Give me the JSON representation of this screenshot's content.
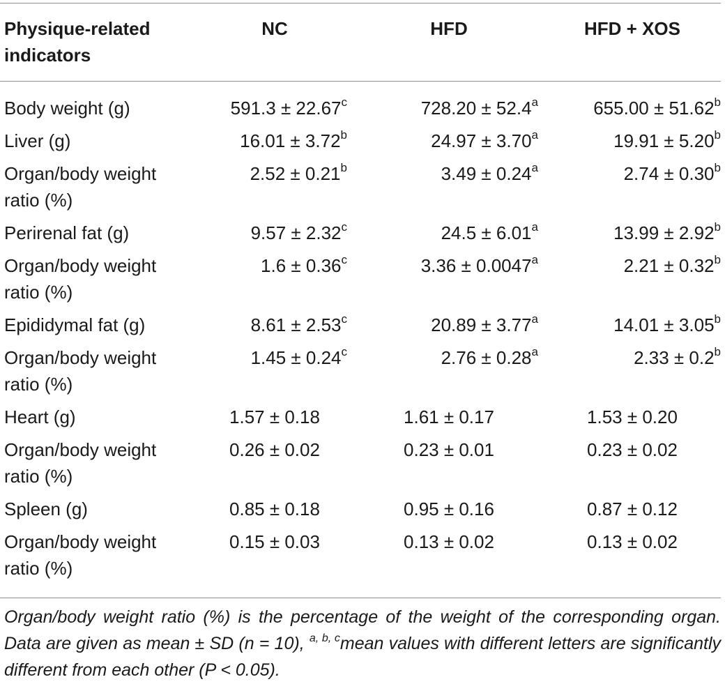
{
  "table": {
    "columns": [
      "Physique-related indicators",
      "NC",
      "HFD",
      "HFD + XOS"
    ],
    "rows": [
      {
        "label": "Body weight (g)",
        "nc": "591.3 ± 22.67",
        "nc_sup": "c",
        "hfd": "728.20 ± 52.4",
        "hfd_sup": "a",
        "xos": "655.00 ± 51.62",
        "xos_sup": "b"
      },
      {
        "label": "Liver (g)",
        "nc": "16.01 ± 3.72",
        "nc_sup": "b",
        "hfd": "24.97 ± 3.70",
        "hfd_sup": "a",
        "xos": "19.91 ± 5.20",
        "xos_sup": "b"
      },
      {
        "label": "Organ/body weight ratio (%)",
        "nc": "2.52 ± 0.21",
        "nc_sup": "b",
        "hfd": "3.49 ± 0.24",
        "hfd_sup": "a",
        "xos": "2.74 ± 0.30",
        "xos_sup": "b"
      },
      {
        "label": "Perirenal fat (g)",
        "nc": "9.57 ± 2.32",
        "nc_sup": "c",
        "hfd": "24.5 ± 6.01",
        "hfd_sup": "a",
        "xos": "13.99 ± 2.92",
        "xos_sup": "b"
      },
      {
        "label": "Organ/body weight ratio (%)",
        "nc": "1.6 ± 0.36",
        "nc_sup": "c",
        "hfd": "3.36 ± 0.0047",
        "hfd_sup": "a",
        "xos": "2.21 ± 0.32",
        "xos_sup": "b"
      },
      {
        "label": "Epididymal fat (g)",
        "nc": "8.61 ± 2.53",
        "nc_sup": "c",
        "hfd": "20.89 ± 3.77",
        "hfd_sup": "a",
        "xos": "14.01 ± 3.05",
        "xos_sup": "b"
      },
      {
        "label": "Organ/body weight ratio (%)",
        "nc": "1.45 ± 0.24",
        "nc_sup": "c",
        "hfd": "2.76 ± 0.28",
        "hfd_sup": "a",
        "xos": "2.33 ± 0.2",
        "xos_sup": "b"
      },
      {
        "label": "Heart (g)",
        "nc": "1.57 ± 0.18",
        "nc_sup": "",
        "hfd": "1.61 ± 0.17",
        "hfd_sup": "",
        "xos": "1.53 ± 0.20",
        "xos_sup": ""
      },
      {
        "label": "Organ/body weight ratio (%)",
        "nc": "0.26 ± 0.02",
        "nc_sup": "",
        "hfd": "0.23 ± 0.01",
        "hfd_sup": "",
        "xos": "0.23 ± 0.02",
        "xos_sup": ""
      },
      {
        "label": "Spleen (g)",
        "nc": "0.85 ± 0.18",
        "nc_sup": "",
        "hfd": "0.95 ± 0.16",
        "hfd_sup": "",
        "xos": "0.87 ± 0.12",
        "xos_sup": ""
      },
      {
        "label": "Organ/body weight ratio (%)",
        "nc": "0.15 ± 0.03",
        "nc_sup": "",
        "hfd": "0.13 ± 0.02",
        "hfd_sup": "",
        "xos": "0.13 ± 0.02",
        "xos_sup": ""
      }
    ]
  },
  "footnote": {
    "part1": "Organ/body weight ratio (%) is the percentage of the weight of the corresponding organ. Data are given as mean ± SD (n = 10), ",
    "superscript": "a, b, c",
    "part2": "mean values with different letters are significantly different from each other (P < 0.05)."
  }
}
